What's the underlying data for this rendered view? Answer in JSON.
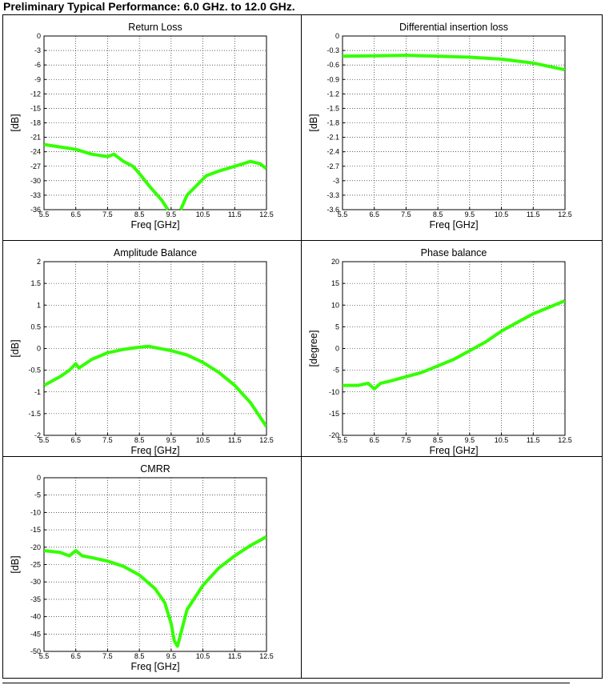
{
  "heading": "Preliminary Typical Performance: 6.0 GHz. to 12.0 GHz.",
  "chart_data": [
    {
      "type": "line",
      "title": "Return Loss",
      "xlabel": "Freq [GHz]",
      "ylabel": "[dB]",
      "xlim": [
        5.5,
        12.5
      ],
      "xticks": [
        5.5,
        6.5,
        7.5,
        8.5,
        9.5,
        10.5,
        11.5,
        12.5
      ],
      "ylim": [
        -36,
        0
      ],
      "yticks": [
        0,
        -3,
        -6,
        -9,
        -12,
        -15,
        -18,
        -21,
        -24,
        -27,
        -30,
        -33,
        -36
      ],
      "grid": true,
      "x": [
        5.5,
        6.0,
        6.5,
        7.0,
        7.5,
        7.7,
        8.0,
        8.3,
        8.5,
        8.8,
        9.0,
        9.2,
        9.4,
        9.6,
        9.8,
        10.0,
        10.3,
        10.6,
        11.0,
        11.5,
        12.0,
        12.3,
        12.5
      ],
      "series": [
        {
          "color": "#33ff00",
          "values": [
            -22.5,
            -23,
            -23.5,
            -24.5,
            -25,
            -24.5,
            -26,
            -27,
            -28.5,
            -31,
            -32.5,
            -34,
            -36,
            null,
            -36,
            -33,
            -31,
            -29,
            -28,
            -27,
            -26,
            -26.5,
            -27.5
          ]
        }
      ]
    },
    {
      "type": "line",
      "title": "Differential insertion loss",
      "xlabel": "Freq [GHz]",
      "ylabel": "[dB]",
      "xlim": [
        5.5,
        12.5
      ],
      "xticks": [
        5.5,
        6.5,
        7.5,
        8.5,
        9.5,
        10.5,
        11.5,
        12.5
      ],
      "ylim": [
        -3.6,
        0
      ],
      "yticks": [
        0,
        -0.3,
        -0.6,
        -0.9,
        -1.2,
        -1.5,
        -1.8,
        -2.1,
        -2.4,
        -2.7,
        -3,
        -3.3,
        -3.6
      ],
      "grid": true,
      "x": [
        5.5,
        6.5,
        7.5,
        8.5,
        9.5,
        10.5,
        11.5,
        12.5
      ],
      "series": [
        {
          "color": "#33ff00",
          "values": [
            -0.42,
            -0.41,
            -0.4,
            -0.42,
            -0.44,
            -0.48,
            -0.56,
            -0.7
          ]
        }
      ]
    },
    {
      "type": "line",
      "title": "Amplitude Balance",
      "xlabel": "Freq [GHz]",
      "ylabel": "[dB]",
      "xlim": [
        5.5,
        12.5
      ],
      "xticks": [
        5.5,
        6.5,
        7.5,
        8.5,
        9.5,
        10.5,
        11.5,
        12.5
      ],
      "ylim": [
        -2,
        2
      ],
      "yticks": [
        2,
        1.5,
        1,
        0.5,
        0,
        -0.5,
        -1,
        -1.5,
        -2
      ],
      "grid": true,
      "x": [
        5.5,
        6.0,
        6.3,
        6.5,
        6.6,
        7.0,
        7.5,
        8.0,
        8.5,
        8.8,
        9.0,
        9.5,
        10.0,
        10.5,
        11.0,
        11.5,
        12.0,
        12.5
      ],
      "series": [
        {
          "color": "#33ff00",
          "values": [
            -0.85,
            -0.65,
            -0.5,
            -0.35,
            -0.45,
            -0.25,
            -0.1,
            -0.02,
            0.03,
            0.05,
            0.02,
            -0.05,
            -0.15,
            -0.32,
            -0.55,
            -0.85,
            -1.25,
            -1.8
          ]
        }
      ]
    },
    {
      "type": "line",
      "title": "Phase balance",
      "xlabel": "Freq [GHz]",
      "ylabel": "[degree]",
      "xlim": [
        5.5,
        12.5
      ],
      "xticks": [
        5.5,
        6.5,
        7.5,
        8.5,
        9.5,
        10.5,
        11.5,
        12.5
      ],
      "ylim": [
        -20,
        20
      ],
      "yticks": [
        20,
        15,
        10,
        5,
        0,
        -5,
        -10,
        -15,
        -20
      ],
      "grid": true,
      "x": [
        5.5,
        6.0,
        6.3,
        6.5,
        6.7,
        7.0,
        7.5,
        8.0,
        8.5,
        9.0,
        9.5,
        10.0,
        10.5,
        11.0,
        11.5,
        12.0,
        12.5
      ],
      "series": [
        {
          "color": "#33ff00",
          "values": [
            -8.5,
            -8.5,
            -8,
            -9.3,
            -8,
            -7.5,
            -6.5,
            -5.5,
            -4,
            -2.5,
            -0.5,
            1.5,
            4,
            6,
            8,
            9.5,
            11
          ]
        }
      ]
    },
    {
      "type": "line",
      "title": "CMRR",
      "xlabel": "Freq [GHz]",
      "ylabel": "[dB]",
      "xlim": [
        5.5,
        12.5
      ],
      "xticks": [
        5.5,
        6.5,
        7.5,
        8.5,
        9.5,
        10.5,
        11.5,
        12.5
      ],
      "ylim": [
        -50,
        0
      ],
      "yticks": [
        0,
        -5,
        -10,
        -15,
        -20,
        -25,
        -30,
        -35,
        -40,
        -45,
        -50
      ],
      "grid": true,
      "x": [
        5.5,
        6.0,
        6.3,
        6.5,
        6.7,
        7.0,
        7.5,
        8.0,
        8.5,
        9.0,
        9.3,
        9.5,
        9.6,
        9.7,
        9.8,
        10.0,
        10.5,
        11.0,
        11.5,
        12.0,
        12.5
      ],
      "series": [
        {
          "color": "#33ff00",
          "values": [
            -21,
            -21.5,
            -22.5,
            -21,
            -22.5,
            -23,
            -24,
            -25.5,
            -28,
            -32,
            -36,
            -42,
            -47,
            -48.5,
            -45,
            -38,
            -31,
            -26,
            -22.5,
            -19.5,
            -17
          ]
        }
      ]
    }
  ]
}
